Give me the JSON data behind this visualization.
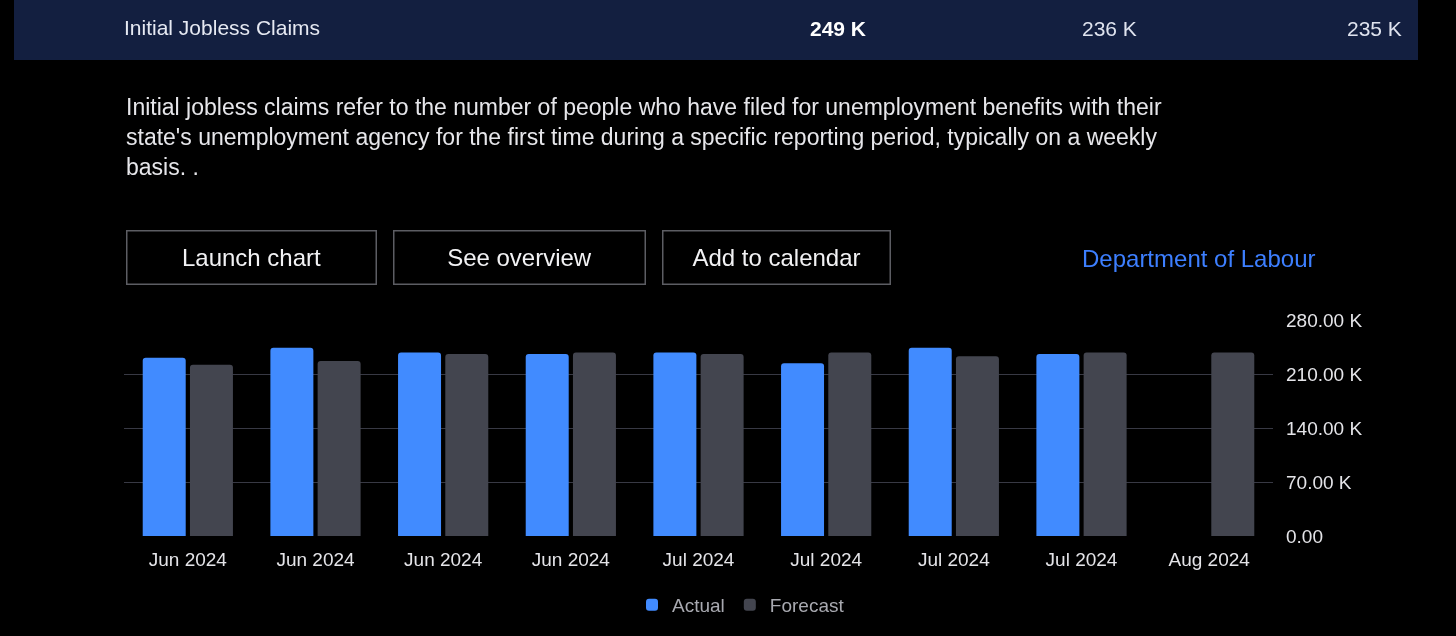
{
  "chart_data": {
    "type": "bar",
    "title": "Initial Jobless Claims",
    "subtitle": "Initial jobless claims refer to the number of people who have filed for unemployment benefits with their state's unemployment agency for the first time during a specific reporting period, typically on a weekly basis. .",
    "annotations": [
      "249 K",
      "236 K",
      "235 K",
      "Launch chart",
      "See overview",
      "Add to calendar",
      "Department of Labour"
    ],
    "categories": [
      "Jun 2024",
      "Jun 2024",
      "Jun 2024",
      "Jun 2024",
      "Jul 2024",
      "Jul 2024",
      "Jul 2024",
      "Jul 2024",
      "Aug 2024"
    ],
    "series": [
      {
        "name": "Actual",
        "color": "#418bff",
        "values": [
          231,
          244,
          238,
          236,
          238,
          224,
          244,
          236,
          null
        ]
      },
      {
        "name": "Forecast",
        "color": "#43454f",
        "values": [
          222,
          227,
          236,
          238,
          236,
          238,
          233,
          238,
          238
        ]
      }
    ],
    "ylim": [
      0,
      280
    ],
    "yticks": [
      {
        "value": 0,
        "label": "0.00"
      },
      {
        "value": 70,
        "label": "70.00 K"
      },
      {
        "value": 140,
        "label": "140.00 K"
      },
      {
        "value": 210,
        "label": "210.00 K"
      },
      {
        "value": 280,
        "label": "280.00 K"
      }
    ],
    "grid": "y",
    "legend": "bottom"
  }
}
